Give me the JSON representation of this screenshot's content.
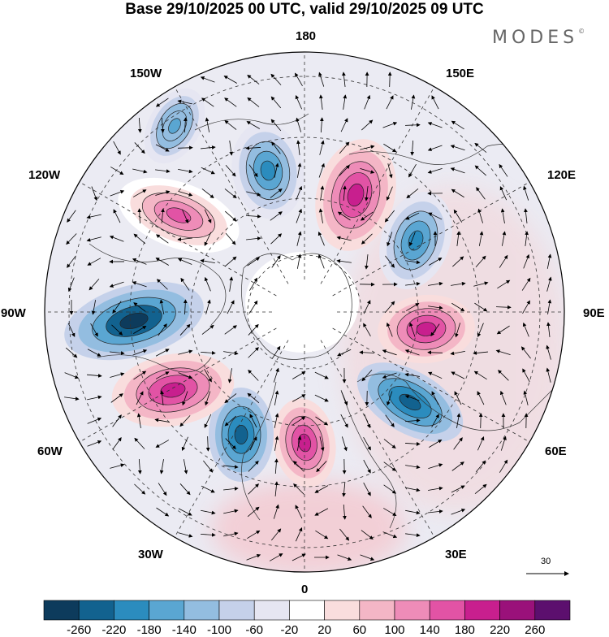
{
  "header": {
    "title": "Base 29/10/2025 00 UTC, valid 29/10/2025 09 UTC",
    "brand": "MODES",
    "brand_mark": "©"
  },
  "map": {
    "projection": "north-polar-stereographic",
    "longitude_labels": {
      "top": "180",
      "bottom": "0",
      "left": "90W",
      "right": "90E",
      "upper_left_1": "150W",
      "upper_left_2": "120W",
      "lower_left_1": "60W",
      "lower_left_2": "30W",
      "upper_right_1": "150E",
      "upper_right_2": "120E",
      "lower_right_1": "60E",
      "lower_right_2": "30E"
    },
    "vector_reference": "30",
    "anomaly_cells": [
      {
        "sign": "positive",
        "peak": 220,
        "sector": "north-northeast of pole"
      },
      {
        "sign": "negative",
        "peak": -180,
        "sector": "north-northwest of pole"
      },
      {
        "sign": "negative",
        "peak": -200,
        "sector": "northeast"
      },
      {
        "sign": "positive",
        "peak": 200,
        "sector": "east"
      },
      {
        "sign": "negative",
        "peak": -240,
        "sector": "southeast"
      },
      {
        "sign": "positive",
        "peak": 200,
        "sector": "south"
      },
      {
        "sign": "negative",
        "peak": -220,
        "sector": "south-southwest"
      },
      {
        "sign": "positive",
        "peak": 220,
        "sector": "southwest"
      },
      {
        "sign": "negative",
        "peak": -260,
        "sector": "west"
      },
      {
        "sign": "positive",
        "peak": 160,
        "sector": "northwest"
      },
      {
        "sign": "negative",
        "peak": -140,
        "sector": "north-northwest far"
      }
    ]
  },
  "colorbar": {
    "colors": [
      "#0d3b5c",
      "#12628f",
      "#2b8cbe",
      "#5aa6d2",
      "#93bde0",
      "#c5d1ea",
      "#e6e6f2",
      "#ffffff",
      "#f9dddd",
      "#f4b6c6",
      "#ee8cb8",
      "#e253a5",
      "#c81f8e",
      "#9a117a",
      "#5c0f6e"
    ],
    "tick_labels": [
      "-260",
      "-220",
      "-180",
      "-140",
      "-100",
      "-60",
      "-20",
      "20",
      "60",
      "100",
      "140",
      "180",
      "220",
      "260"
    ]
  }
}
